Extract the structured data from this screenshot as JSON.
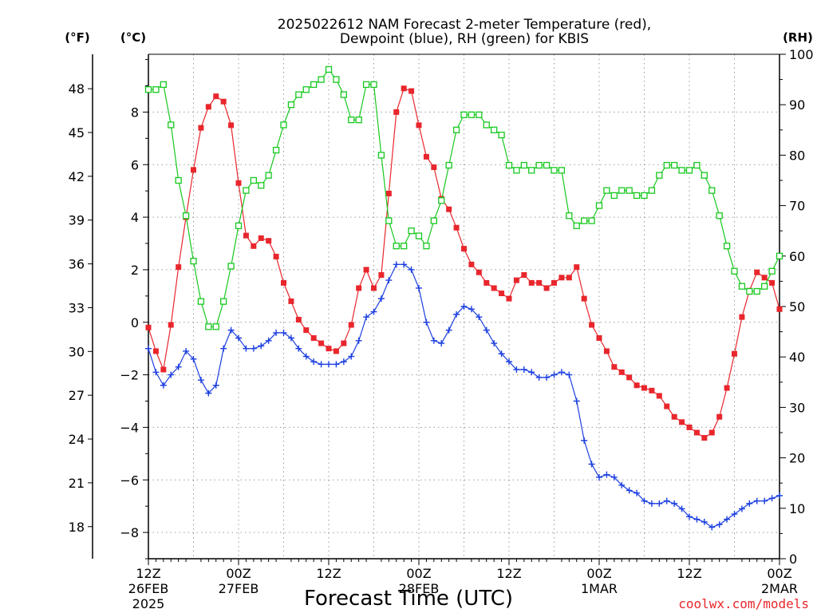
{
  "chart_data": {
    "type": "line",
    "title_line1": "2025022612 NAM Forecast 2-meter Temperature (red),",
    "title_line2": "Dewpoint (blue), RH (green) for KBIS",
    "xlabel": "Forecast Time (UTC)",
    "unit_f": "(°F)",
    "unit_c": "(°C)",
    "unit_rh": "(RH)",
    "credit": "coolwx.com/models",
    "xlim": [
      0,
      84
    ],
    "ylim_c": [
      -9,
      10.2
    ],
    "ylim_rh": [
      0,
      100
    ],
    "grid": true,
    "celsius_ticks": [
      -8,
      -6,
      -4,
      -2,
      0,
      2,
      4,
      6,
      8
    ],
    "celsius_tick_labels": [
      "−8",
      "−6",
      "−4",
      "−2",
      "0",
      "2",
      "4",
      "6",
      "8"
    ],
    "fahrenheit_ticks": [
      18,
      21,
      24,
      27,
      30,
      33,
      36,
      39,
      42,
      45,
      48
    ],
    "fahrenheit_tick_labels": [
      "18",
      "21",
      "24",
      "27",
      "30",
      "33",
      "36",
      "39",
      "42",
      "45",
      "48"
    ],
    "rh_ticks": [
      0,
      10,
      20,
      30,
      40,
      50,
      60,
      70,
      80,
      90,
      100
    ],
    "rh_tick_labels": [
      "0",
      "10",
      "20",
      "30",
      "40",
      "50",
      "60",
      "70",
      "80",
      "90",
      "100"
    ],
    "x_ticks": [
      {
        "x": 0,
        "l1": "12Z",
        "l2": "26FEB",
        "l3": "2025"
      },
      {
        "x": 12,
        "l1": "00Z",
        "l2": "27FEB",
        "l3": ""
      },
      {
        "x": 24,
        "l1": "12Z",
        "l2": "",
        "l3": ""
      },
      {
        "x": 36,
        "l1": "00Z",
        "l2": "28FEB",
        "l3": ""
      },
      {
        "x": 48,
        "l1": "12Z",
        "l2": "",
        "l3": ""
      },
      {
        "x": 60,
        "l1": "00Z",
        "l2": "1MAR",
        "l3": ""
      },
      {
        "x": 72,
        "l1": "12Z",
        "l2": "",
        "l3": ""
      },
      {
        "x": 84,
        "l1": "00Z",
        "l2": "2MAR",
        "l3": ""
      }
    ],
    "series": [
      {
        "key": "temperature",
        "unit": "C",
        "color": "#e8262c",
        "marker": "filled-square",
        "values": [
          -0.2,
          -1.1,
          -1.8,
          -0.1,
          2.1,
          4.0,
          5.8,
          7.4,
          8.2,
          8.6,
          8.4,
          7.5,
          5.3,
          3.3,
          2.9,
          3.2,
          3.1,
          2.5,
          1.5,
          0.8,
          0.1,
          -0.3,
          -0.6,
          -0.8,
          -1.0,
          -1.1,
          -0.8,
          -0.1,
          1.3,
          2.0,
          1.3,
          1.8,
          4.9,
          8.0,
          8.9,
          8.8,
          7.5,
          6.3,
          5.9,
          4.7,
          4.3,
          3.6,
          2.8,
          2.2,
          1.9,
          1.5,
          1.3,
          1.1,
          0.9,
          1.6,
          1.8,
          1.5,
          1.5,
          1.3,
          1.5,
          1.7,
          1.7,
          2.1,
          0.9,
          -0.1,
          -0.6,
          -1.1,
          -1.7,
          -1.9,
          -2.1,
          -2.4,
          -2.5,
          -2.6,
          -2.8,
          -3.2,
          -3.6,
          -3.8,
          -4.0,
          -4.2,
          -4.4,
          -4.2,
          -3.6,
          -2.5,
          -1.2,
          0.2,
          1.2,
          1.9,
          1.7,
          1.5,
          0.5
        ]
      },
      {
        "key": "dewpoint",
        "unit": "C",
        "color": "#1c3fe0",
        "marker": "plus",
        "values": [
          -1.0,
          -1.9,
          -2.4,
          -2.0,
          -1.7,
          -1.1,
          -1.4,
          -2.2,
          -2.7,
          -2.4,
          -1.0,
          -0.3,
          -0.6,
          -1.0,
          -1.0,
          -0.9,
          -0.7,
          -0.4,
          -0.4,
          -0.6,
          -1.0,
          -1.3,
          -1.5,
          -1.6,
          -1.6,
          -1.6,
          -1.5,
          -1.3,
          -0.7,
          0.2,
          0.4,
          0.9,
          1.6,
          2.2,
          2.2,
          2.0,
          1.3,
          0.0,
          -0.7,
          -0.8,
          -0.3,
          0.3,
          0.6,
          0.5,
          0.2,
          -0.3,
          -0.8,
          -1.2,
          -1.5,
          -1.8,
          -1.8,
          -1.9,
          -2.1,
          -2.1,
          -2.0,
          -1.9,
          -2.0,
          -3.0,
          -4.5,
          -5.4,
          -5.9,
          -5.8,
          -5.9,
          -6.2,
          -6.4,
          -6.5,
          -6.8,
          -6.9,
          -6.9,
          -6.8,
          -6.9,
          -7.1,
          -7.4,
          -7.5,
          -7.6,
          -7.8,
          -7.7,
          -7.5,
          -7.3,
          -7.1,
          -6.9,
          -6.8,
          -6.8,
          -6.7,
          -6.6
        ]
      },
      {
        "key": "rh",
        "unit": "%",
        "color": "#17c81f",
        "marker": "open-square",
        "values": [
          93,
          93,
          94,
          86,
          75,
          68,
          59,
          51,
          46,
          46,
          51,
          58,
          66,
          73,
          75,
          74,
          76,
          81,
          86,
          90,
          92,
          93,
          94,
          95,
          97,
          95,
          92,
          87,
          87,
          94,
          94,
          80,
          67,
          62,
          62,
          65,
          64,
          62,
          67,
          71,
          78,
          85,
          88,
          88,
          88,
          86,
          85,
          84,
          78,
          77,
          78,
          77,
          78,
          78,
          77,
          77,
          68,
          66,
          67,
          67,
          70,
          73,
          72,
          73,
          73,
          72,
          72,
          73,
          76,
          78,
          78,
          77,
          77,
          78,
          76,
          73,
          68,
          62,
          57,
          54,
          53,
          53,
          54,
          57,
          60
        ]
      }
    ]
  }
}
